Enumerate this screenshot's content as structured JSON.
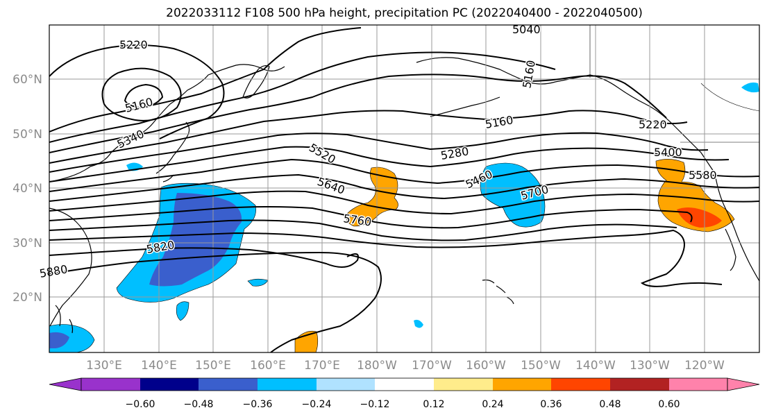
{
  "title": "2022033112 F108 500 hPa height, precipitation PC (2022040400 - 2022040500)",
  "map": {
    "lat_ticks": [
      "60°N",
      "50°N",
      "40°N",
      "30°N",
      "20°N"
    ],
    "lon_ticks": [
      "130°E",
      "140°E",
      "150°E",
      "160°E",
      "170°E",
      "180°W",
      "170°W",
      "160°W",
      "150°W",
      "140°W",
      "130°W",
      "120°W"
    ],
    "contour_labels": [
      "5220",
      "5160",
      "5340",
      "5040",
      "5160",
      "5160",
      "5280",
      "5400",
      "5220",
      "5580",
      "5460",
      "5700",
      "5520",
      "5640",
      "5760",
      "5820",
      "5880"
    ],
    "contour_interval": 60,
    "contour_color": "#000000"
  },
  "colorbar": {
    "tick_labels": [
      "−0.60",
      "−0.48",
      "−0.36",
      "−0.24",
      "−0.12",
      "0.12",
      "0.24",
      "0.36",
      "0.48",
      "0.60"
    ],
    "colors": [
      "#9932cc",
      "#00008b",
      "#3a5fcd",
      "#00bfff",
      "#b0e2ff",
      "#ffffff",
      "#ffec8b",
      "#ffa500",
      "#ff4500",
      "#b22222",
      "#ff82ab"
    ]
  }
}
